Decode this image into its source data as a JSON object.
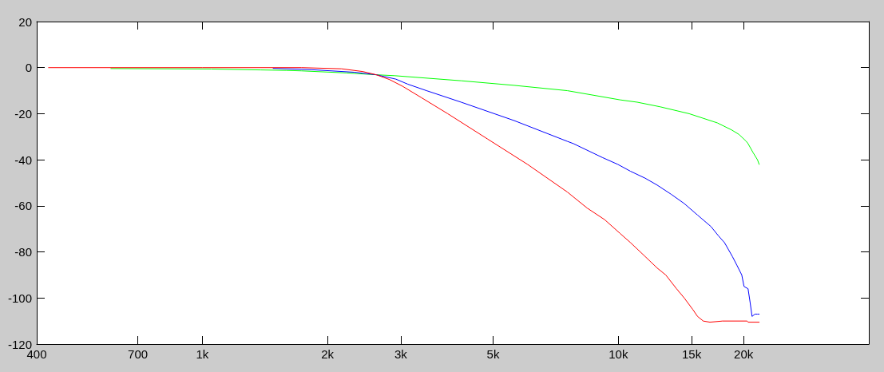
{
  "chart_data": {
    "type": "line",
    "log": "x",
    "grid": false,
    "marker": "none",
    "line_style": "solid",
    "xlim": [
      400,
      40000
    ],
    "xticks": [
      400,
      700,
      {
        "value": 1000,
        "label": "1k"
      },
      {
        "value": 2000,
        "label": "2k"
      },
      {
        "value": 3000,
        "label": "3k"
      },
      {
        "value": 5000,
        "label": "5k"
      },
      {
        "value": 10000,
        "label": "10k"
      },
      {
        "value": 15000,
        "label": "15k"
      },
      {
        "value": 20000,
        "label": "20k"
      }
    ],
    "ylim": [
      -120,
      20
    ],
    "yticks": [
      -120,
      -100,
      -80,
      -60,
      -40,
      -20,
      0,
      20
    ],
    "series": [
      {
        "color": "#00ff00",
        "x": [
          603,
          1050,
          1380,
          1590,
          1730,
          2220,
          2620,
          2900,
          4190,
          5620,
          7540,
          10100,
          11100,
          12600,
          14800,
          16000,
          17300,
          18700,
          19500,
          20300,
          20500,
          21100,
          21600,
          21800
        ],
        "values": [
          -0.4,
          -0.6,
          -1,
          -1.2,
          -1.4,
          -2.3,
          -3.1,
          -3.5,
          -5.7,
          -7.7,
          -10,
          -14,
          -15,
          -17,
          -20,
          -22,
          -24,
          -27,
          -29,
          -32,
          -33,
          -37,
          -40,
          -42
        ]
      },
      {
        "color": "#0000ff",
        "x": [
          1480,
          1830,
          2320,
          2620,
          2920,
          3120,
          3460,
          4190,
          5620,
          7540,
          7800,
          9150,
          9970,
          10700,
          11600,
          12400,
          13400,
          14400,
          15500,
          16700,
          17400,
          18000,
          18800,
          19300,
          19800,
          20050,
          20500,
          20740,
          20960,
          21300,
          21600,
          21800
        ],
        "values": [
          -0.3,
          -0.9,
          -2,
          -3.1,
          -5,
          -7.2,
          -10,
          -15,
          -23,
          -32,
          -33,
          -39,
          -42,
          -45,
          -48,
          -51,
          -55,
          -59,
          -64,
          -69,
          -73,
          -76,
          -82,
          -86,
          -90,
          -95,
          -96,
          -102,
          -108,
          -107,
          -107,
          -107
        ]
      },
      {
        "color": "#ff0000",
        "x": [
          427,
          1000,
          1730,
          2160,
          2430,
          2620,
          2820,
          3030,
          3360,
          3890,
          4850,
          6050,
          7540,
          8420,
          9270,
          10100,
          10700,
          11600,
          12400,
          13000,
          13800,
          14400,
          15100,
          15500,
          16000,
          16600,
          17800,
          20400,
          20500,
          21800
        ],
        "values": [
          0,
          0,
          0,
          -0.5,
          -1.7,
          -3.1,
          -5.2,
          -8.1,
          -13,
          -20,
          -31,
          -42,
          -54,
          -61,
          -66,
          -72,
          -76,
          -82,
          -87,
          -90,
          -96,
          -100,
          -105,
          -108,
          -110,
          -110.5,
          -110,
          -110,
          -110.5,
          -110.5
        ]
      }
    ]
  }
}
